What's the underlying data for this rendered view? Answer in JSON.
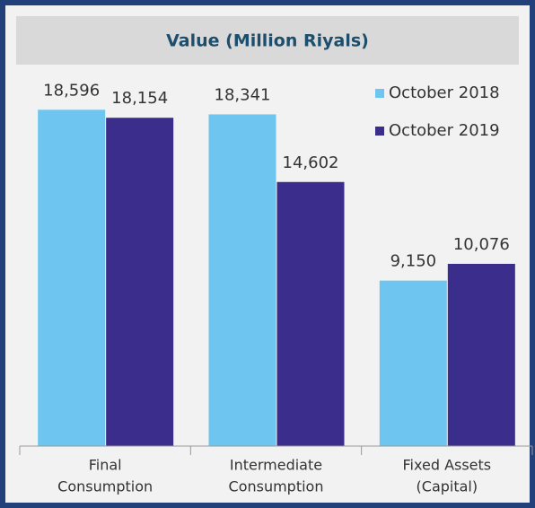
{
  "chart_data": {
    "type": "bar",
    "title": "Value (Million Riyals)",
    "categories": [
      [
        "Final",
        "Consumption"
      ],
      [
        "Intermediate",
        "Consumption"
      ],
      [
        "Fixed Assets",
        "(Capital)"
      ]
    ],
    "series": [
      {
        "name": "October 2018",
        "color": "#6ec6f0",
        "values": [
          18596,
          18341,
          9150
        ],
        "value_labels": [
          "18,596",
          "18,341",
          "9,150"
        ]
      },
      {
        "name": "October 2019",
        "color": "#3a2d8c",
        "values": [
          18154,
          14602,
          10076
        ],
        "value_labels": [
          "18,154",
          "14,602",
          "10,076"
        ]
      }
    ],
    "ylim": [
      0,
      20000
    ],
    "legend": "upper right"
  }
}
